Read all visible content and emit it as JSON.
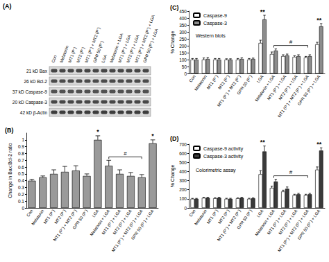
{
  "blot": {
    "title": "(A)",
    "lanes": [
      "Con",
      "Melatonin",
      "MT1 (P⁻)",
      "MT2 (P⁻)",
      "MT1 (P⁻) + MT2 (P⁻)",
      "GPR 50 (P⁻)",
      "LGA",
      "Melatonin + LGA",
      "MT1 (P⁻) + LGA",
      "MT2 (P⁻) + LGA",
      "MT1 (P⁻) + MT2 (P⁻) + LGA",
      "GPR 50 (P⁻) + LGA"
    ],
    "rows": [
      "21 kD Bax",
      "26 kD Bcl-2",
      "37 kD Caspase-9",
      "20 kD Caspase-3",
      "42 kD β-Actin"
    ]
  },
  "chart_data": [
    {
      "type": "bar",
      "title": "(B)",
      "y_label": "Change in Bax:Bcl-2 ratio",
      "categories": [
        "Con",
        "Melatonin",
        "MT1 (P⁻)",
        "MT2 (P⁻)",
        "MT1 (P⁻) + MT2 (P⁻)",
        "GPR 50 (P⁻)",
        "LGA",
        "Melatonin + LGA",
        "MT1 (P⁻) + LGA",
        "MT2 (P⁻) + LGA",
        "MT1 (P⁻) + MT2 (P⁻) + LGA",
        "GPR 50 (P⁻) + LGA"
      ],
      "values": [
        0.4,
        0.45,
        0.5,
        0.53,
        0.55,
        0.47,
        1.0,
        0.62,
        0.5,
        0.47,
        0.45,
        0.95
      ],
      "errors": [
        0.02,
        0.02,
        0.06,
        0.08,
        0.07,
        0.03,
        0.06,
        0.08,
        0.06,
        0.05,
        0.04,
        0.05
      ],
      "color": "#9a9a9a",
      "ylim": [
        0,
        1.1
      ],
      "yticks": [
        0,
        0.1,
        0.2,
        0.3,
        0.4,
        0.5,
        0.6,
        0.7,
        0.8,
        0.9,
        1
      ],
      "grid": false,
      "annotations": [
        {
          "text": "*",
          "category": "LGA"
        },
        {
          "text": "*",
          "category": "GPR 50 (P⁻) + LGA"
        },
        {
          "text": "#",
          "from": "Melatonin + LGA",
          "to": "MT1 (P⁻) + MT2 (P⁻) + LGA"
        }
      ]
    },
    {
      "type": "bar",
      "title": "(C)",
      "y_label": "% Change",
      "categories": [
        "Con",
        "Melatonin",
        "MT1 (P⁻)",
        "MT2 (P⁻)",
        "MT1 (P⁻) + MT2 (P⁻)",
        "GPR 50 (P⁻)",
        "LGA",
        "Melatonin + LGA",
        "MT1 (P⁻) + LGA",
        "MT2 (P⁻) + LGA",
        "MT1 (P⁻) + MT2 (P⁻) + LGA",
        "GPR 50 (P⁻) + LGA"
      ],
      "series": [
        {
          "name": "Caspase-9",
          "color": "#ffffff",
          "values": [
            100,
            100,
            100,
            100,
            100,
            100,
            220,
            140,
            125,
            120,
            115,
            210
          ],
          "errors": [
            8,
            12,
            8,
            6,
            8,
            8,
            20,
            15,
            10,
            8,
            8,
            15
          ]
        },
        {
          "name": "Caspase-3",
          "color": "#8c8c8c",
          "values": [
            100,
            105,
            100,
            100,
            105,
            105,
            390,
            165,
            130,
            125,
            125,
            340
          ],
          "errors": [
            8,
            10,
            8,
            6,
            8,
            6,
            30,
            12,
            10,
            10,
            10,
            20
          ]
        }
      ],
      "ylim": [
        0,
        450
      ],
      "yticks": [
        0,
        50,
        100,
        150,
        200,
        250,
        300,
        350,
        400,
        450
      ],
      "grid": false,
      "legend": "upper left",
      "annotations": [
        {
          "text": "Western blots"
        },
        {
          "text": "**",
          "category": "LGA"
        },
        {
          "text": "**",
          "category": "GPR 50 (P⁻) + LGA"
        },
        {
          "text": "#",
          "from": "Melatonin + LGA",
          "to": "MT1 (P⁻) + MT2 (P⁻) + LGA"
        }
      ]
    },
    {
      "type": "bar",
      "title": "(D)",
      "y_label": "% Change",
      "categories": [
        "Con",
        "Melatonin",
        "MT1 (P⁻)",
        "MT2 (P⁻)",
        "MT1 (P⁻) + MT2 (P⁻)",
        "GPR 50 (P⁻)",
        "LGA",
        "Melatonin + LGA",
        "MT1 (P⁻) + LGA",
        "MT2 (P⁻) + LGA",
        "MT1 (P⁻) + MT2 (P⁻) + LGA",
        "GPR 50 (P⁻) + LGA"
      ],
      "series": [
        {
          "name": "Caspase-9 activity",
          "color": "#ffffff",
          "values": [
            100,
            110,
            105,
            100,
            105,
            100,
            370,
            220,
            180,
            140,
            140,
            420
          ],
          "errors": [
            5,
            8,
            8,
            6,
            6,
            6,
            40,
            20,
            15,
            10,
            10,
            30
          ]
        },
        {
          "name": "Caspase-3 activity",
          "color": "#3a3a3a",
          "values": [
            100,
            110,
            110,
            100,
            110,
            105,
            620,
            290,
            210,
            150,
            150,
            630
          ],
          "errors": [
            5,
            8,
            8,
            6,
            8,
            6,
            60,
            25,
            20,
            10,
            10,
            30
          ]
        }
      ],
      "ylim": [
        0,
        700
      ],
      "yticks": [
        0,
        100,
        200,
        300,
        400,
        500,
        600,
        700
      ],
      "grid": false,
      "legend": "upper left",
      "annotations": [
        {
          "text": "Colorimetric assay"
        },
        {
          "text": "**",
          "category": "LGA"
        },
        {
          "text": "**",
          "category": "GPR 50 (P⁻) + LGA"
        },
        {
          "text": "#",
          "from": "Melatonin + LGA",
          "to": "MT1 (P⁻) + MT2 (P⁻) + LGA"
        }
      ]
    }
  ]
}
